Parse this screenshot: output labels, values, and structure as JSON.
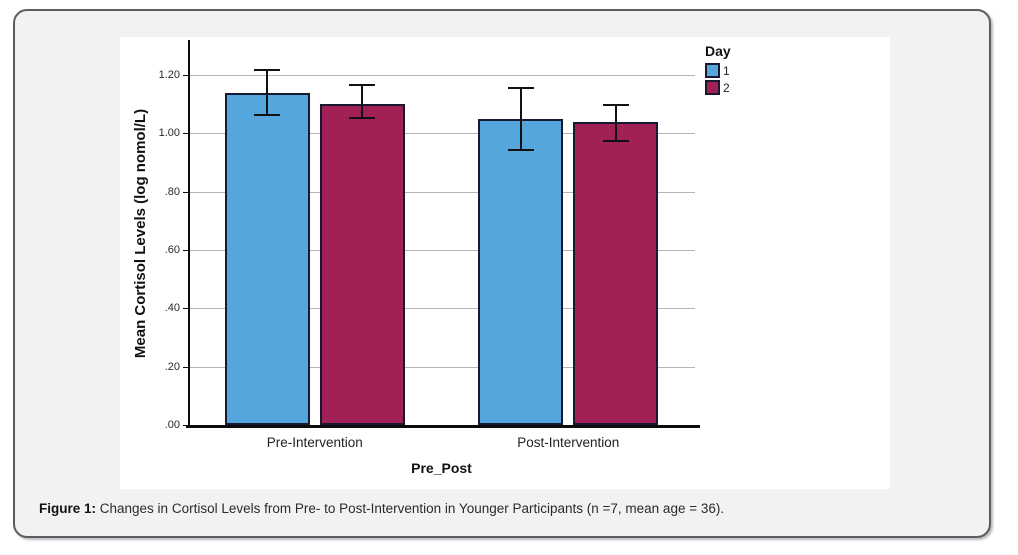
{
  "figure": {
    "caption_label": "Figure 1:",
    "caption_text": " Changes in Cortisol Levels from Pre- to Post-Intervention in Younger Participants (n =7, mean age = 36)."
  },
  "chart_data": {
    "type": "bar",
    "title": "",
    "categories": [
      "Pre-Intervention",
      "Post-Intervention"
    ],
    "series": [
      {
        "name": "1",
        "color": "#54A6DC",
        "values": [
          1.14,
          1.05
        ],
        "error_low": [
          1.06,
          0.94
        ],
        "error_high": [
          1.22,
          1.16
        ]
      },
      {
        "name": "2",
        "color": "#A12056",
        "values": [
          1.1,
          1.04
        ],
        "error_low": [
          1.05,
          0.97
        ],
        "error_high": [
          1.17,
          1.1
        ]
      }
    ],
    "xlabel": "Pre_Post",
    "ylabel": "Mean Cortisol Levels (log nomol/L)",
    "yticks": [
      {
        "label": ".00",
        "value": 0.0
      },
      {
        "label": ".20",
        "value": 0.2
      },
      {
        "label": ".40",
        "value": 0.4
      },
      {
        "label": ".60",
        "value": 0.6
      },
      {
        "label": ".80",
        "value": 0.8
      },
      {
        "label": "1.00",
        "value": 1.0
      },
      {
        "label": "1.20",
        "value": 1.2
      }
    ],
    "ylim": [
      0,
      1.32
    ],
    "grid": "horizontal",
    "legend": {
      "title": "Day",
      "position": "top-right",
      "entries": [
        {
          "label": "1",
          "color": "#54A6DC"
        },
        {
          "label": "2",
          "color": "#A12056"
        }
      ]
    }
  }
}
